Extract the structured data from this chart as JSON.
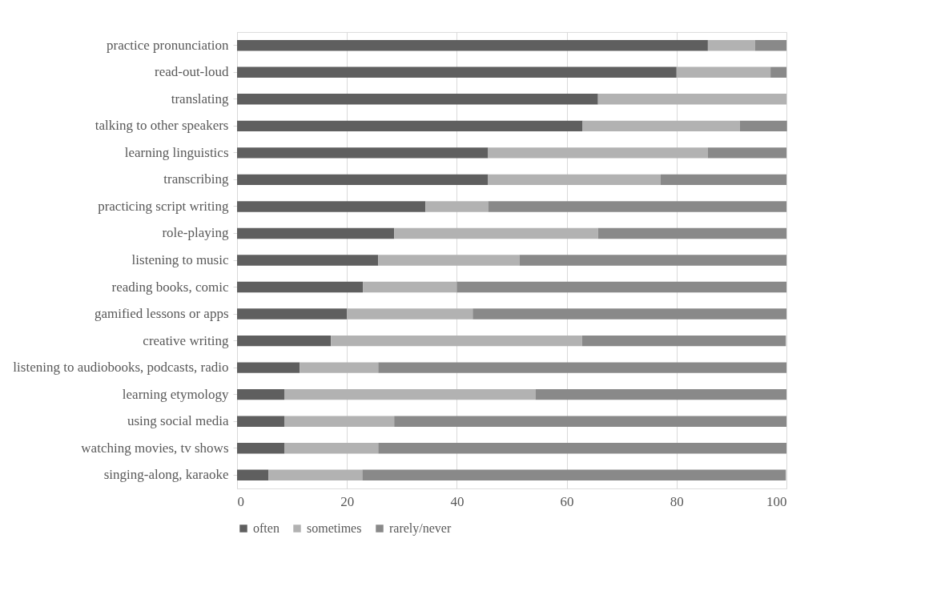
{
  "chart_data": {
    "type": "bar",
    "orientation": "horizontal",
    "stacked": true,
    "categories": [
      "practice pronunciation",
      "read-out-loud",
      "translating",
      "talking to other speakers",
      "learning linguistics",
      "transcribing",
      "practicing script writing",
      "role-playing",
      "listening to music",
      "reading books, comic",
      "gamified lessons or apps",
      "creative writing",
      "listening to audiobooks, podcasts, radio",
      "learning etymology",
      "using social media",
      "watching movies, tv shows",
      "singing-along, karaoke"
    ],
    "series": [
      {
        "name": "often",
        "color": "#5f5f5f",
        "values": [
          85.7,
          80.0,
          65.7,
          62.9,
          45.7,
          45.7,
          34.3,
          28.6,
          25.7,
          22.9,
          20.0,
          17.1,
          11.4,
          8.6,
          8.6,
          8.6,
          5.7
        ]
      },
      {
        "name": "sometimes",
        "color": "#b2b2b2",
        "values": [
          8.6,
          17.1,
          34.3,
          28.6,
          40.0,
          31.4,
          11.4,
          37.1,
          25.7,
          17.1,
          22.9,
          45.7,
          14.3,
          45.7,
          20.0,
          17.1,
          17.1
        ]
      },
      {
        "name": "rarely/never",
        "color": "#898989",
        "values": [
          5.7,
          2.9,
          0,
          8.6,
          14.3,
          22.9,
          54.3,
          34.3,
          48.6,
          60.0,
          57.1,
          37.1,
          74.3,
          45.7,
          71.4,
          74.3,
          77.1
        ]
      }
    ],
    "xlim": [
      0,
      100
    ],
    "xticks": [
      0,
      20,
      40,
      60,
      80,
      100
    ],
    "grid": "x",
    "legend": "bottom"
  }
}
